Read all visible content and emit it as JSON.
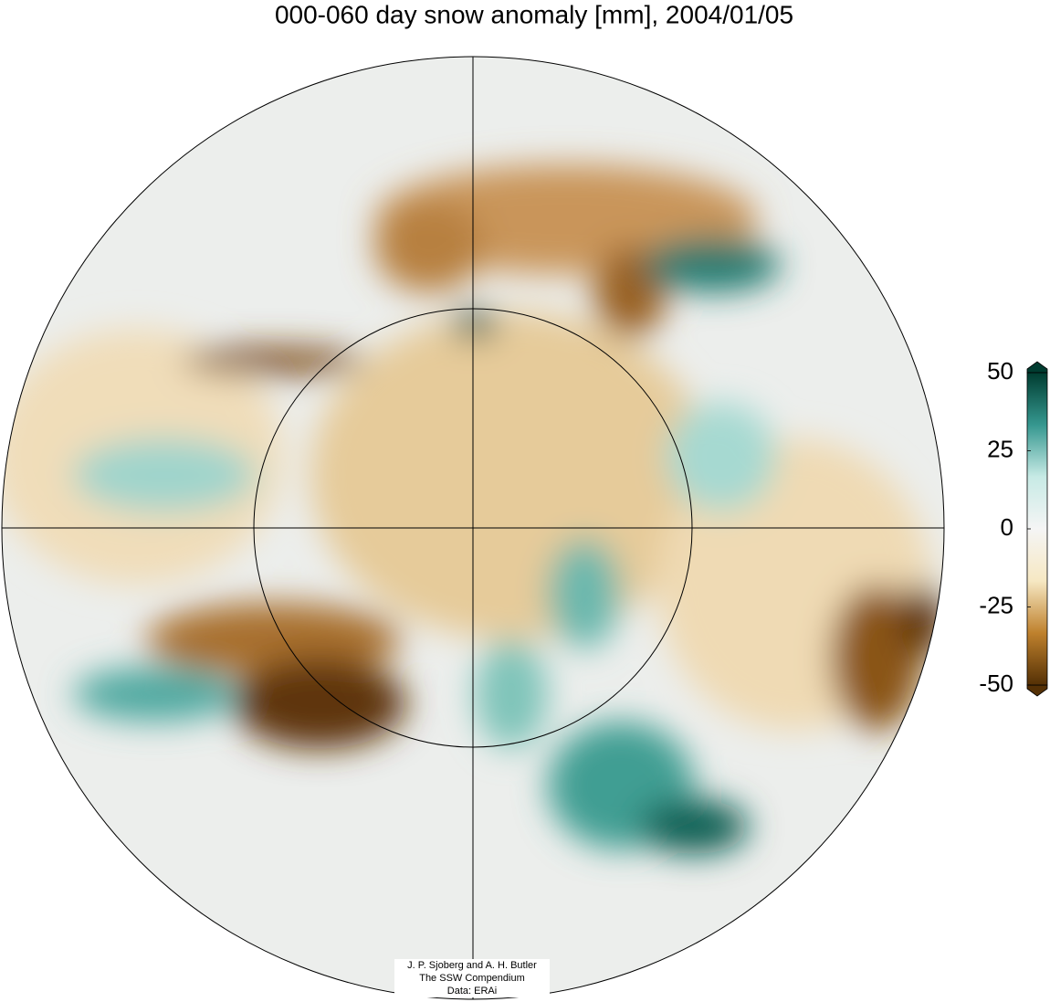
{
  "title": "000-060 day snow anomaly [mm], 2004/01/05",
  "colorbar": {
    "lim": [
      -50,
      50
    ],
    "ticks": [
      50,
      25,
      0,
      -25,
      -50
    ],
    "colors": [
      "#543005",
      "#bf812d",
      "#f6e8c3",
      "#f5f5f5",
      "#c7eae5",
      "#35978f",
      "#003c30"
    ]
  },
  "credit": [
    "J. P. Sjoberg and A. H. Butler",
    "The SSW Compendium",
    "Data: ERAi"
  ]
}
